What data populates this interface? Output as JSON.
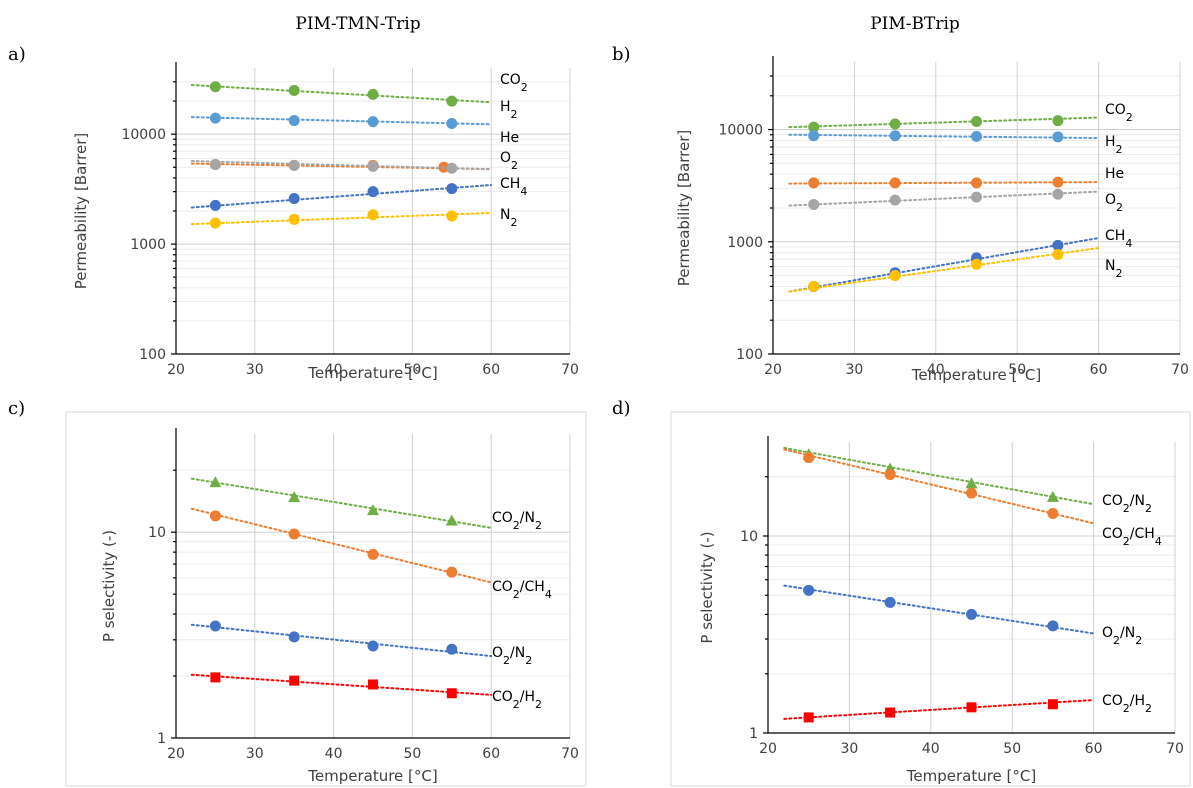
{
  "column_titles": [
    "PIM-TMN-Trip",
    "PIM-BTrip"
  ],
  "panel_labels": [
    "a)",
    "b)",
    "c)",
    "d)"
  ],
  "colors": {
    "CO2": "#70ad47",
    "H2": "#5b9bd5",
    "He": "#ed7d31",
    "O2": "#a5a5a5",
    "CH4": "#4472c4",
    "N2": "#ffc000",
    "CO2/N2": "#70ad47",
    "CO2/CH4": "#ed7d31",
    "O2/N2": "#4472c4",
    "CO2/H2": "#ff0000"
  },
  "chart_data": [
    {
      "panel": "a)",
      "type": "scatter",
      "ylog": true,
      "xlim": [
        20,
        70
      ],
      "ylim": [
        100,
        40000
      ],
      "xticks": [
        20,
        30,
        40,
        50,
        60,
        70
      ],
      "yticks": [
        100,
        1000,
        10000
      ],
      "xlabel": "Temperature [°C]",
      "ylabel": "Permeability [Barrer]",
      "series": [
        {
          "name": "CO2",
          "label": [
            "CO",
            "2",
            ""
          ],
          "color_key": "CO2",
          "marker": "circle",
          "x": [
            25,
            35,
            45,
            55
          ],
          "y": [
            27000,
            25000,
            23000,
            20000
          ],
          "trend": [
            [
              22,
              28000
            ],
            [
              60,
              19500
            ]
          ]
        },
        {
          "name": "H2",
          "label": [
            "H",
            "2",
            ""
          ],
          "color_key": "H2",
          "marker": "circle",
          "x": [
            25,
            35,
            45,
            55
          ],
          "y": [
            14000,
            13300,
            13000,
            12500
          ],
          "trend": [
            [
              22,
              14300
            ],
            [
              60,
              12300
            ]
          ]
        },
        {
          "name": "He",
          "label": [
            "He",
            "",
            ""
          ],
          "color_key": "He",
          "marker": "circle",
          "x": [
            25,
            35,
            45,
            54
          ],
          "y": [
            5300,
            5200,
            5200,
            5000
          ],
          "trend": [
            [
              22,
              5400
            ],
            [
              60,
              4800
            ]
          ]
        },
        {
          "name": "O2",
          "label": [
            "O",
            "2",
            ""
          ],
          "color_key": "O2",
          "marker": "circle",
          "x": [
            25,
            35,
            45,
            55
          ],
          "y": [
            5300,
            5200,
            5100,
            4900
          ],
          "trend": [
            [
              22,
              5700
            ],
            [
              60,
              4800
            ]
          ]
        },
        {
          "name": "CH4",
          "label": [
            "CH",
            "4",
            ""
          ],
          "color_key": "CH4",
          "marker": "circle",
          "x": [
            25,
            35,
            45,
            55
          ],
          "y": [
            2250,
            2600,
            3000,
            3200
          ],
          "trend": [
            [
              22,
              2150
            ],
            [
              60,
              3450
            ]
          ]
        },
        {
          "name": "N2",
          "label": [
            "N",
            "2",
            ""
          ],
          "color_key": "N2",
          "marker": "circle",
          "x": [
            25,
            35,
            45,
            55
          ],
          "y": [
            1550,
            1680,
            1850,
            1800
          ],
          "trend": [
            [
              22,
              1520
            ],
            [
              60,
              1920
            ]
          ]
        }
      ]
    },
    {
      "panel": "b)",
      "type": "scatter",
      "ylog": true,
      "xlim": [
        20,
        70
      ],
      "ylim": [
        100,
        40000
      ],
      "xticks": [
        20,
        30,
        40,
        50,
        60,
        70
      ],
      "yticks": [
        100,
        1000,
        10000
      ],
      "xlabel": "Temperature [°C]",
      "ylabel": "Permeability [Barrer]",
      "series": [
        {
          "name": "CO2",
          "label": [
            "CO",
            "2",
            ""
          ],
          "color_key": "CO2",
          "marker": "circle",
          "x": [
            25,
            35,
            45,
            55
          ],
          "y": [
            10500,
            11200,
            11800,
            12000
          ],
          "trend": [
            [
              22,
              10500
            ],
            [
              60,
              12800
            ]
          ]
        },
        {
          "name": "H2",
          "label": [
            "H",
            "2",
            ""
          ],
          "color_key": "H2",
          "marker": "circle",
          "x": [
            25,
            35,
            45,
            55
          ],
          "y": [
            8800,
            8800,
            8700,
            8600
          ],
          "trend": [
            [
              22,
              9000
            ],
            [
              60,
              8400
            ]
          ]
        },
        {
          "name": "He",
          "label": [
            "He",
            "",
            ""
          ],
          "color_key": "He",
          "marker": "circle",
          "x": [
            25,
            35,
            45,
            55
          ],
          "y": [
            3350,
            3350,
            3350,
            3400
          ],
          "trend": [
            [
              22,
              3300
            ],
            [
              60,
              3400
            ]
          ]
        },
        {
          "name": "O2",
          "label": [
            "O",
            "2",
            ""
          ],
          "color_key": "O2",
          "marker": "circle",
          "x": [
            25,
            35,
            45,
            55
          ],
          "y": [
            2150,
            2350,
            2500,
            2650
          ],
          "trend": [
            [
              22,
              2100
            ],
            [
              60,
              2800
            ]
          ]
        },
        {
          "name": "CH4",
          "label": [
            "CH",
            "4",
            ""
          ],
          "color_key": "CH4",
          "marker": "circle",
          "x": [
            25,
            35,
            45,
            55
          ],
          "y": [
            400,
            530,
            720,
            930
          ],
          "trend": [
            [
              22,
              360
            ],
            [
              60,
              1080
            ]
          ]
        },
        {
          "name": "N2",
          "label": [
            "N",
            "2",
            ""
          ],
          "color_key": "N2",
          "marker": "circle",
          "x": [
            25,
            35,
            45,
            55
          ],
          "y": [
            400,
            500,
            630,
            770
          ],
          "trend": [
            [
              22,
              360
            ],
            [
              60,
              880
            ]
          ]
        }
      ]
    },
    {
      "panel": "c)",
      "type": "scatter",
      "ylog": true,
      "xlim": [
        20,
        70
      ],
      "ylim": [
        1,
        30
      ],
      "xticks": [
        20,
        30,
        40,
        50,
        60,
        70
      ],
      "yticks": [
        1,
        10
      ],
      "xlabel": "Temperature [°C]",
      "ylabel": "P selectivity (-)",
      "series": [
        {
          "name": "CO2/N2",
          "label": [
            "CO",
            "2",
            "/N",
            "2"
          ],
          "color_key": "CO2/N2",
          "marker": "triangle",
          "x": [
            25,
            35,
            45,
            55
          ],
          "y": [
            17.5,
            14.8,
            12.8,
            11.4
          ],
          "trend": [
            [
              22,
              18.2
            ],
            [
              60,
              10.5
            ]
          ]
        },
        {
          "name": "CO2/CH4",
          "label": [
            "CO",
            "2",
            "/CH",
            "4"
          ],
          "color_key": "CO2/CH4",
          "marker": "circle",
          "x": [
            25,
            35,
            45,
            55
          ],
          "y": [
            12,
            9.8,
            7.8,
            6.4
          ],
          "trend": [
            [
              22,
              13
            ],
            [
              60,
              5.7
            ]
          ]
        },
        {
          "name": "O2/N2",
          "label": [
            "O",
            "2",
            "/N",
            "2"
          ],
          "color_key": "O2/N2",
          "marker": "circle",
          "x": [
            25,
            35,
            45,
            55
          ],
          "y": [
            3.5,
            3.1,
            2.8,
            2.7
          ],
          "trend": [
            [
              22,
              3.55
            ],
            [
              60,
              2.5
            ]
          ]
        },
        {
          "name": "CO2/H2",
          "label": [
            "CO",
            "2",
            "/H",
            "2"
          ],
          "color_key": "CO2/H2",
          "marker": "square",
          "x": [
            25,
            35,
            45,
            55
          ],
          "y": [
            1.97,
            1.9,
            1.82,
            1.65
          ],
          "trend": [
            [
              22,
              2.03
            ],
            [
              60,
              1.62
            ]
          ]
        }
      ]
    },
    {
      "panel": "d)",
      "type": "scatter",
      "ylog": true,
      "xlim": [
        20,
        70
      ],
      "ylim": [
        1,
        30
      ],
      "xticks": [
        20,
        30,
        40,
        50,
        60,
        70
      ],
      "yticks": [
        1,
        10
      ],
      "xlabel": "Temperature [°C]",
      "ylabel": "P selectivity (-)",
      "series": [
        {
          "name": "CO2/N2",
          "label": [
            "CO",
            "2",
            "/N",
            "2"
          ],
          "color_key": "CO2/N2",
          "marker": "triangle",
          "x": [
            25,
            35,
            45,
            55
          ],
          "y": [
            26,
            22,
            18.5,
            15.8
          ],
          "trend": [
            [
              22,
              28
            ],
            [
              60,
              14.5
            ]
          ]
        },
        {
          "name": "CO2/CH4",
          "label": [
            "CO",
            "2",
            "/CH",
            "4"
          ],
          "color_key": "CO2/CH4",
          "marker": "circle",
          "x": [
            25,
            35,
            45,
            55
          ],
          "y": [
            25,
            20.5,
            16.5,
            13
          ],
          "trend": [
            [
              22,
              27.5
            ],
            [
              60,
              11.6
            ]
          ]
        },
        {
          "name": "O2/N2",
          "label": [
            "O",
            "2",
            "/N",
            "2"
          ],
          "color_key": "O2/N2",
          "marker": "circle",
          "x": [
            25,
            35,
            45,
            55
          ],
          "y": [
            5.3,
            4.6,
            4.0,
            3.5
          ],
          "trend": [
            [
              22,
              5.6
            ],
            [
              60,
              3.2
            ]
          ]
        },
        {
          "name": "CO2/H2",
          "label": [
            "CO",
            "2",
            "/H",
            "2"
          ],
          "color_key": "CO2/H2",
          "marker": "square",
          "x": [
            25,
            35,
            45,
            55
          ],
          "y": [
            1.2,
            1.27,
            1.35,
            1.4
          ],
          "trend": [
            [
              22,
              1.18
            ],
            [
              60,
              1.47
            ]
          ]
        }
      ]
    }
  ]
}
